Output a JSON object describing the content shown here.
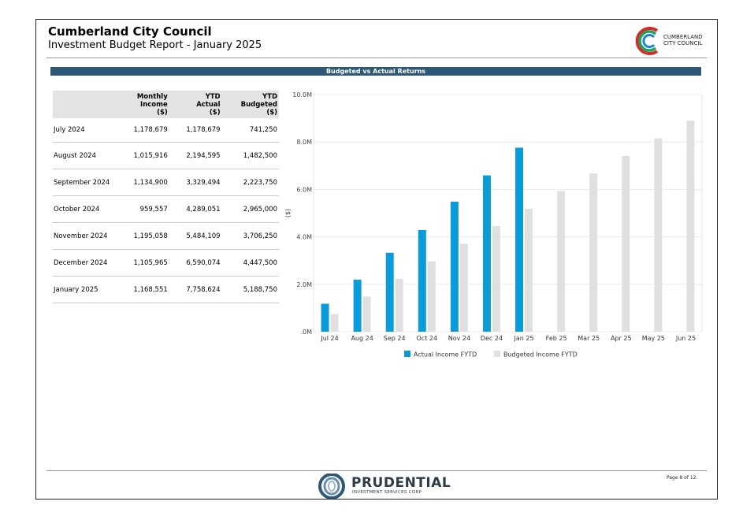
{
  "header": {
    "title": "Cumberland City Council",
    "subtitle": "Investment Budget Report - January 2025",
    "logo_line1": "CUMBERLAND",
    "logo_line2": "CITY COUNCIL"
  },
  "banner": "Budgeted vs Actual Returns",
  "table": {
    "headers": [
      [
        "",
        "",
        ""
      ],
      [
        "Monthly",
        "Income",
        "($)"
      ],
      [
        "YTD",
        "Actual",
        "($)"
      ],
      [
        "YTD",
        "Budgeted",
        "($)"
      ]
    ],
    "rows": [
      [
        "July 2024",
        "1,178,679",
        "1,178,679",
        "741,250"
      ],
      [
        "August 2024",
        "1,015,916",
        "2,194,595",
        "1,482,500"
      ],
      [
        "September 2024",
        "1,134,900",
        "3,329,494",
        "2,223,750"
      ],
      [
        "October 2024",
        "959,557",
        "4,289,051",
        "2,965,000"
      ],
      [
        "November 2024",
        "1,195,058",
        "5,484,109",
        "3,706,250"
      ],
      [
        "December 2024",
        "1,105,965",
        "6,590,074",
        "4,447,500"
      ],
      [
        "January 2025",
        "1,168,551",
        "7,758,624",
        "5,188,750"
      ]
    ]
  },
  "chart_data": {
    "type": "bar",
    "title": "Budgeted vs Actual Returns",
    "xlabel": "",
    "ylabel": "($)",
    "ylim": [
      0,
      10000000
    ],
    "yticks": [
      0,
      2000000,
      4000000,
      6000000,
      8000000,
      10000000
    ],
    "ytick_labels": [
      ".0M",
      "2.0M",
      "4.0M",
      "6.0M",
      "8.0M",
      "10.0M"
    ],
    "grid": true,
    "legend_position": "bottom",
    "categories": [
      "Jul 24",
      "Aug 24",
      "Sep 24",
      "Oct 24",
      "Nov 24",
      "Dec 24",
      "Jan 25",
      "Feb 25",
      "Mar 25",
      "Apr 25",
      "May 25",
      "Jun 25"
    ],
    "series": [
      {
        "name": "Actual Income FYTD",
        "color": "#0b9bd8",
        "values": [
          1178679,
          2194595,
          3329494,
          4289051,
          5484109,
          6590074,
          7758624,
          null,
          null,
          null,
          null,
          null
        ]
      },
      {
        "name": "Budgeted Income FYTD",
        "color": "#e0e0e0",
        "values": [
          741250,
          1482500,
          2223750,
          2965000,
          3706250,
          4447500,
          5188750,
          5930000,
          6671250,
          7412500,
          8153750,
          8895000
        ]
      }
    ]
  },
  "footer": {
    "brand": "PRUDENTIAL",
    "brand_sub": "INVESTMENT SERVICES CORP",
    "page": "Page 8 of 12."
  }
}
